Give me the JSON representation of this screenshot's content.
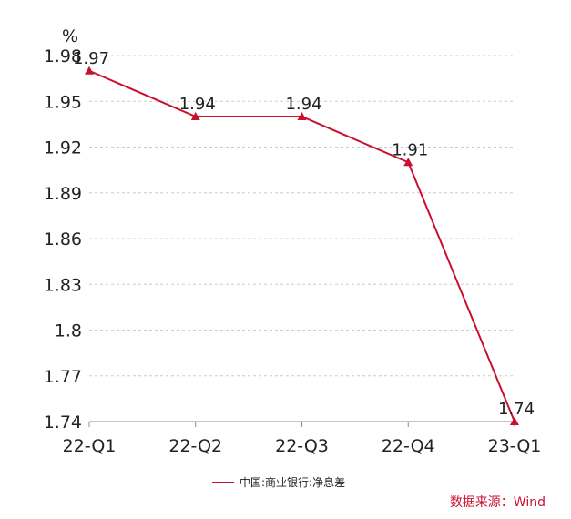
{
  "chart_data": {
    "type": "line",
    "unit_label": "%",
    "categories": [
      "22-Q1",
      "22-Q2",
      "22-Q3",
      "22-Q4",
      "23-Q1"
    ],
    "series": [
      {
        "name": "中国:商业银行:净息差",
        "values": [
          1.97,
          1.94,
          1.94,
          1.91,
          1.74
        ],
        "data_labels": [
          "1.97",
          "1.94",
          "1.94",
          "1.91",
          "1.74"
        ],
        "color": "#c8102e",
        "marker": "triangle"
      }
    ],
    "yticks": [
      "1.98",
      "1.95",
      "1.92",
      "1.89",
      "1.86",
      "1.83",
      "1.8",
      "1.77",
      "1.74"
    ],
    "ylim": [
      1.74,
      1.98
    ],
    "grid": true,
    "legend_position": "bottom"
  },
  "source": "数据来源：Wind"
}
